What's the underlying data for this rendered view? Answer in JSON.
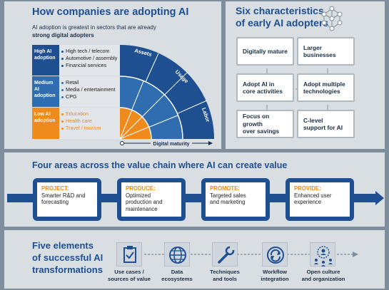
{
  "adoption": {
    "title": "How companies are adopting AI",
    "subtitle_1": "AI adoption is greatest in sectors that are already",
    "subtitle_2": "strong digital adopters",
    "rows": [
      {
        "label": "High AI adoption",
        "color": "#1d4f91",
        "items": [
          "High tech / telecom",
          "Automotive / assembly",
          "Financial services"
        ]
      },
      {
        "label": "Medium AI adoption",
        "color": "#2f6db0",
        "items": [
          "Retail",
          "Media / entertainment",
          "CPG"
        ]
      },
      {
        "label": "Low AI adoption",
        "color": "#ef8a1c",
        "items": [
          "Education",
          "Health care",
          "Travel / tourism"
        ]
      }
    ],
    "arc_labels": [
      "Assets",
      "Usage",
      "Labor"
    ],
    "axis_label": "Digital maturity"
  },
  "characteristics": {
    "title_1": "Six characteristics",
    "title_2": "of early AI adopters",
    "items": [
      [
        "Digitally mature"
      ],
      [
        "Larger",
        "businesses"
      ],
      [
        "Adopt AI in",
        "core activities"
      ],
      [
        "Adopt multiple",
        "technologies"
      ],
      [
        "Focus on growth",
        "over savings"
      ],
      [
        "C-level",
        "support for AI"
      ]
    ]
  },
  "value_chain": {
    "title": "Four areas across the value chain where AI can create value",
    "areas": [
      {
        "label": "PROJECT:",
        "lines": [
          "Smarter R&D and",
          "forecasting"
        ]
      },
      {
        "label": "PRODUCE:",
        "lines": [
          "Optimized",
          "production and",
          "maintenance"
        ]
      },
      {
        "label": "PROMOTE:",
        "lines": [
          "Targeted sales",
          "and marketing"
        ]
      },
      {
        "label": "PROVIDE:",
        "lines": [
          "Enhanced user",
          "experience"
        ]
      }
    ]
  },
  "elements": {
    "title_1": "Five elements",
    "title_2": "of successful AI",
    "title_3": "transformations",
    "items": [
      {
        "icon": "clipboard-check-icon",
        "lines": [
          "Use cases /",
          "sources of value"
        ]
      },
      {
        "icon": "globe-icon",
        "lines": [
          "Data",
          "ecosystems"
        ]
      },
      {
        "icon": "wrench-icon",
        "lines": [
          "Techniques",
          "and tools"
        ]
      },
      {
        "icon": "cycle-arrows-icon",
        "lines": [
          "Workflow",
          "integration"
        ]
      },
      {
        "icon": "people-network-icon",
        "lines": [
          "Open culture",
          "and organization"
        ]
      }
    ]
  },
  "colors": {
    "navy": "#1d4f91",
    "orange": "#ef8a1c",
    "panel": "#d9dee3"
  }
}
